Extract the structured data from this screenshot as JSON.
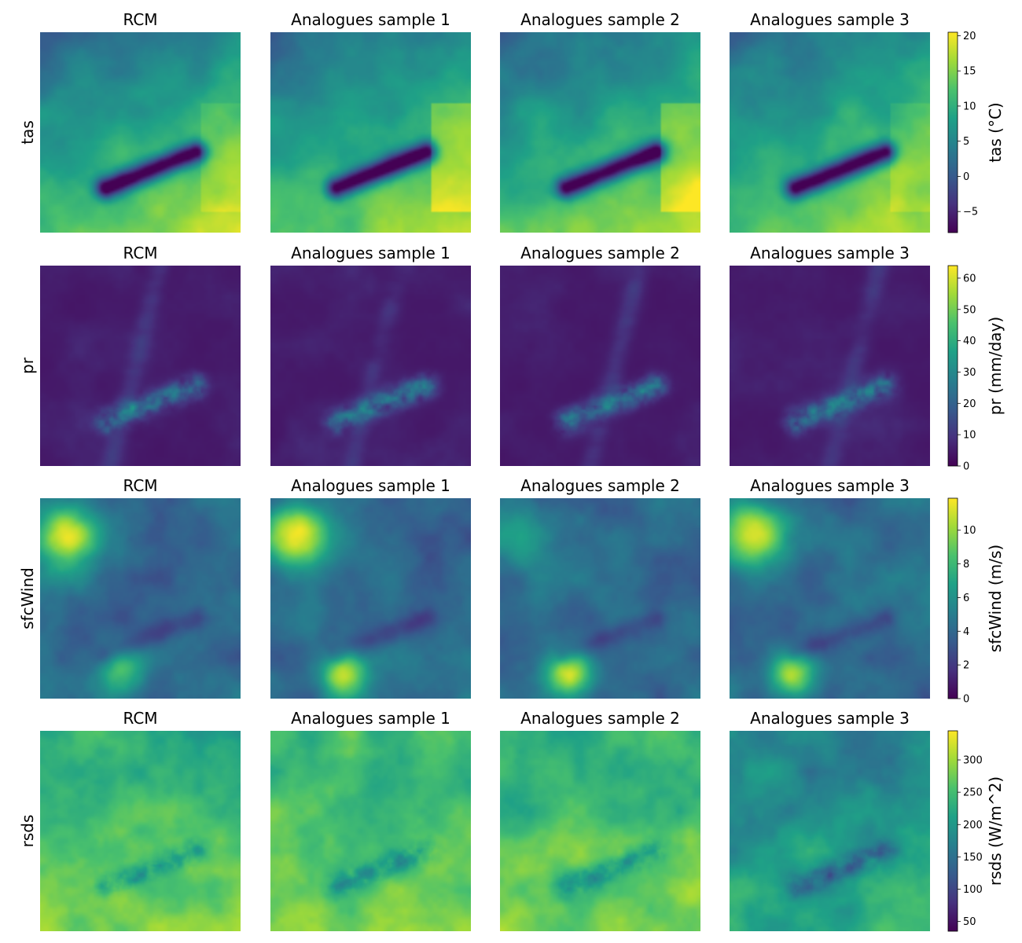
{
  "chart_data": {
    "type": "heatmap",
    "layout": "4 rows x 4 columns of gridded fields, one colorbar per row",
    "columns": [
      "RCM",
      "Analogues sample 1",
      "Analogues sample 2",
      "Analogues sample 3"
    ],
    "rows": [
      {
        "variable": "tas",
        "colorbar_label": "tas (°C)",
        "vmin": -8,
        "vmax": 20.5,
        "ticks": [
          -5,
          0,
          5,
          10,
          15,
          20
        ],
        "tick_labels": [
          "−5",
          "0",
          "5",
          "10",
          "15",
          "20"
        ],
        "panel_means": [
          10,
          11,
          12,
          10
        ]
      },
      {
        "variable": "pr",
        "colorbar_label": "pr (mm/day)",
        "vmin": 0,
        "vmax": 64,
        "ticks": [
          0,
          10,
          20,
          30,
          40,
          50,
          60
        ],
        "tick_labels": [
          "0",
          "10",
          "20",
          "30",
          "40",
          "50",
          "60"
        ],
        "panel_means": [
          4,
          5,
          4,
          5
        ]
      },
      {
        "variable": "sfcWind",
        "colorbar_label": "sfcWind (m/s)",
        "vmin": 0,
        "vmax": 11.9,
        "ticks": [
          0,
          2,
          4,
          6,
          8,
          10
        ],
        "tick_labels": [
          "0",
          "2",
          "4",
          "6",
          "8",
          "10"
        ],
        "panel_means": [
          4,
          4.5,
          3.5,
          4
        ]
      },
      {
        "variable": "rsds",
        "colorbar_label": "rsds (W/m^2)",
        "vmin": 35,
        "vmax": 345,
        "ticks": [
          50,
          100,
          150,
          200,
          250,
          300
        ],
        "tick_labels": [
          "50",
          "100",
          "150",
          "200",
          "250",
          "300"
        ],
        "panel_means": [
          230,
          210,
          220,
          170
        ]
      }
    ],
    "colormap": "viridis",
    "colormap_stops": [
      "#440154",
      "#46327e",
      "#365c8d",
      "#277f8e",
      "#1fa187",
      "#4ac16d",
      "#a0da39",
      "#fde725"
    ]
  }
}
